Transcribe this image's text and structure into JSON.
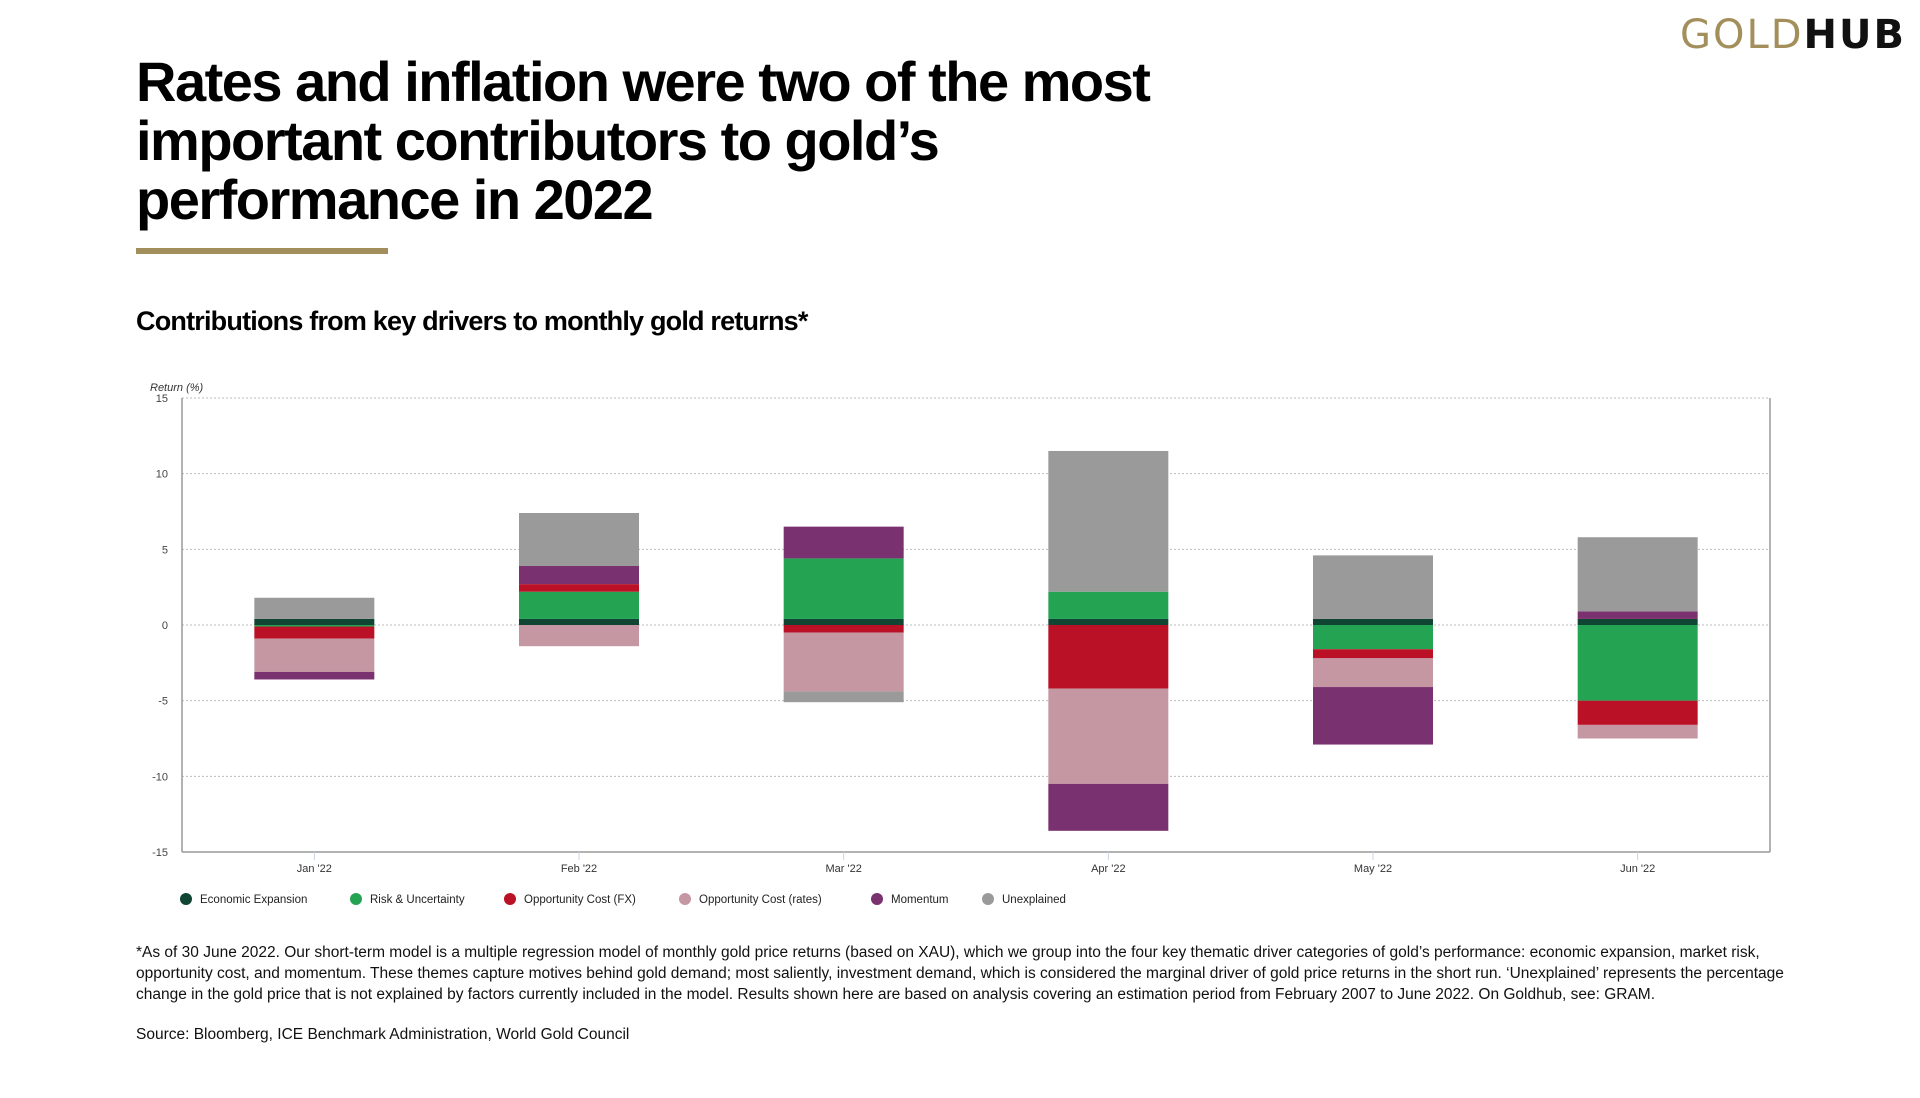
{
  "brand": {
    "part1": "GOLD",
    "part2": "HUB",
    "accent_color": "#a38f5c"
  },
  "title": "Rates and inflation were two of the most important contributors to gold’s performance in 2022",
  "subtitle": "Contributions from key drivers to monthly gold returns*",
  "footnote": "*As of 30 June 2022. Our short-term model is a multiple regression model of monthly gold price returns (based on XAU), which we group into the four key thematic driver categories of gold’s performance: economic expansion, market risk, opportunity cost, and momentum. These themes capture motives behind gold demand; most saliently, investment demand, which is considered the marginal driver of gold price returns in the short run. ‘Unexplained’ represents the percentage change in the gold price that is not explained by factors currently included in the model. Results shown here are based on analysis covering an estimation period from February 2007 to June 2022. On Goldhub, see: GRAM.",
  "source": "Source: Bloomberg, ICE Benchmark Administration, World Gold Council",
  "chart_data": {
    "type": "bar",
    "stacked": true,
    "title": "Contributions from key drivers to monthly gold returns*",
    "xlabel": "",
    "ylabel": "Return (%)",
    "ylim": [
      -15,
      15
    ],
    "yticks": [
      15,
      10,
      5,
      0,
      -5,
      -10,
      -15
    ],
    "grid": true,
    "legend_position": "bottom",
    "categories": [
      "Jan '22",
      "Feb '22",
      "Mar '22",
      "Apr '22",
      "May '22",
      "Jun '22"
    ],
    "series": [
      {
        "name": "Economic Expansion",
        "color": "#0f4532",
        "values": [
          0.4,
          0.4,
          0.4,
          0.4,
          0.4,
          0.4
        ]
      },
      {
        "name": "Risk & Uncertainty",
        "color": "#24a452",
        "values": [
          -0.1,
          1.8,
          4.0,
          1.8,
          -1.6,
          -5.0
        ]
      },
      {
        "name": "Opportunity Cost (FX)",
        "color": "#ba1127",
        "values": [
          -0.8,
          0.5,
          -0.5,
          -4.2,
          -0.6,
          -1.6
        ]
      },
      {
        "name": "Opportunity Cost (rates)",
        "color": "#c497a2",
        "values": [
          -2.2,
          -1.4,
          -3.9,
          -6.3,
          -1.9,
          -0.9
        ]
      },
      {
        "name": "Momentum",
        "color": "#7a3170",
        "values": [
          -0.5,
          1.2,
          2.1,
          -3.1,
          -3.8,
          0.5
        ]
      },
      {
        "name": "Unexplained",
        "color": "#9a9a9a",
        "values": [
          1.4,
          3.5,
          -0.7,
          9.3,
          4.2,
          4.9
        ]
      }
    ]
  }
}
